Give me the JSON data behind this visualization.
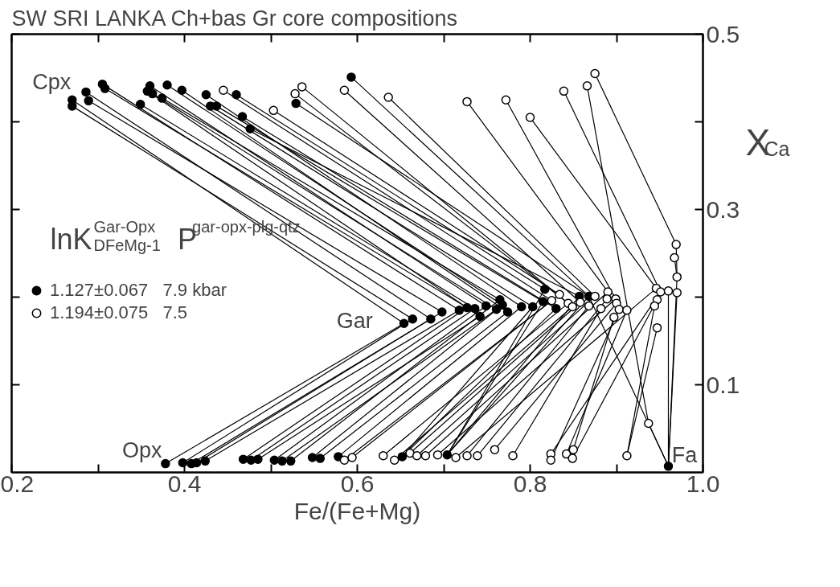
{
  "chart_data": {
    "type": "scatter",
    "title": "SW SRI LANKA   Ch+bas Gr       core compositions",
    "xlabel": "Fe/(Fe+Mg)",
    "ylabel": "X$_{Ca}$",
    "legend_title": "lnK$^{Gar-Opx}$$_{DFeMg-1}$   P$^{gar-opx-plg-qtz}$",
    "xlim": [
      0.2,
      1.0
    ],
    "ylim": [
      0,
      0.5
    ],
    "xticks": [
      0.2,
      {
        "value": 0.3,
        "label": null
      },
      0.4,
      {
        "value": 0.5,
        "label": null
      },
      0.6,
      {
        "value": 0.7,
        "label": null
      },
      0.8,
      {
        "value": 0.9,
        "label": null
      },
      {
        "value": 1.0,
        "label": "1.0"
      }
    ],
    "yticks": [
      0.1,
      {
        "value": 0.2,
        "label": null
      },
      0.3,
      {
        "value": 0.4,
        "label": null
      },
      0.5
    ],
    "grid": false,
    "legend": "left",
    "annotations": [
      "Cpx",
      "Gar",
      "Opx",
      "Fa"
    ],
    "series": [
      {
        "type": "line",
        "color": "#000000",
        "x": [
          0.27,
          0.654,
          0.378
        ],
        "values": [
          0.425,
          0.17,
          0.01
        ]
      },
      {
        "type": "line",
        "color": "#000000",
        "x": [
          0.27,
          0.664,
          0.398
        ],
        "values": [
          0.418,
          0.175,
          0.011
        ]
      },
      {
        "type": "line",
        "color": "#000000",
        "x": [
          0.286,
          0.685,
          0.408
        ],
        "values": [
          0.434,
          0.175,
          0.01
        ]
      },
      {
        "type": "line",
        "color": "#000000",
        "x": [
          0.289,
          0.698,
          0.414
        ],
        "values": [
          0.424,
          0.183,
          0.011
        ]
      },
      {
        "type": "line",
        "color": "#000000",
        "x": [
          0.305,
          0.718,
          0.424
        ],
        "values": [
          0.443,
          0.185,
          0.013
        ]
      },
      {
        "type": "line",
        "color": "#000000",
        "x": [
          0.308,
          0.727,
          0.468
        ],
        "values": [
          0.438,
          0.188,
          0.015
        ]
      },
      {
        "type": "line",
        "color": "#000000",
        "x": [
          0.349,
          0.736,
          0.477
        ],
        "values": [
          0.42,
          0.187,
          0.014
        ]
      },
      {
        "type": "line",
        "color": "#000000",
        "x": [
          0.357,
          0.742,
          0.485
        ],
        "values": [
          0.435,
          0.178,
          0.015
        ]
      },
      {
        "type": "line",
        "color": "#000000",
        "x": [
          0.36,
          0.749,
          0.504
        ],
        "values": [
          0.441,
          0.19,
          0.014
        ]
      },
      {
        "type": "line",
        "color": "#000000",
        "x": [
          0.363,
          0.761,
          0.513
        ],
        "values": [
          0.432,
          0.186,
          0.013
        ]
      },
      {
        "type": "line",
        "color": "#000000",
        "x": [
          0.374,
          0.765,
          0.523
        ],
        "values": [
          0.427,
          0.197,
          0.013
        ]
      },
      {
        "type": "line",
        "color": "#000000",
        "x": [
          0.38,
          0.768,
          0.548
        ],
        "values": [
          0.442,
          0.191,
          0.017
        ]
      },
      {
        "type": "line",
        "color": "#000000",
        "x": [
          0.397,
          0.774,
          0.557
        ],
        "values": [
          0.436,
          0.183,
          0.016
        ]
      },
      {
        "type": "line",
        "color": "#000000",
        "x": [
          0.425,
          0.79,
          0.578
        ],
        "values": [
          0.431,
          0.189,
          0.018
        ]
      },
      {
        "type": "line",
        "color": "#000000",
        "x": [
          0.43,
          0.803,
          0.652
        ],
        "values": [
          0.418,
          0.189,
          0.018
        ]
      },
      {
        "type": "line",
        "color": "#000000",
        "x": [
          0.437,
          0.815,
          0.704
        ],
        "values": [
          0.418,
          0.195,
          0.02
        ]
      },
      {
        "type": "line",
        "color": "#000000",
        "x": [
          0.46,
          0.817,
          0.704
        ],
        "values": [
          0.431,
          0.209,
          0.02
        ]
      },
      {
        "type": "line",
        "color": "#000000",
        "x": [
          0.467,
          0.83,
          0.652
        ],
        "values": [
          0.406,
          0.187,
          0.018
        ]
      },
      {
        "type": "line",
        "color": "#000000",
        "x": [
          0.476,
          0.857,
          0.704
        ],
        "values": [
          0.392,
          0.201,
          0.02
        ]
      },
      {
        "type": "line",
        "color": "#000000",
        "x": [
          0.529,
          0.868,
          0.704
        ],
        "values": [
          0.421,
          0.201,
          0.02
        ]
      },
      {
        "type": "line",
        "color": "#000000",
        "x": [
          0.593,
          0.868,
          0.96
        ],
        "values": [
          0.451,
          0.201,
          0.007
        ]
      },
      {
        "type": "line",
        "color": "#000000",
        "x": [
          0.445,
          0.825,
          0.585
        ],
        "values": [
          0.436,
          0.196,
          0.014
        ]
      },
      {
        "type": "line",
        "color": "#000000",
        "x": [
          0.503,
          0.834,
          0.594
        ],
        "values": [
          0.413,
          0.203,
          0.017
        ]
      },
      {
        "type": "line",
        "color": "#000000",
        "x": [
          0.528,
          0.844,
          0.63
        ],
        "values": [
          0.432,
          0.193,
          0.019
        ]
      },
      {
        "type": "line",
        "color": "#000000",
        "x": [
          0.536,
          0.849,
          0.643
        ],
        "values": [
          0.44,
          0.189,
          0.014
        ]
      },
      {
        "type": "line",
        "color": "#000000",
        "x": [
          0.585,
          0.858,
          0.661
        ],
        "values": [
          0.436,
          0.194,
          0.022
        ]
      },
      {
        "type": "line",
        "color": "#000000",
        "x": [
          0.636,
          0.875,
          0.669
        ],
        "values": [
          0.428,
          0.201,
          0.019
        ]
      },
      {
        "type": "line",
        "color": "#000000",
        "x": [
          0.727,
          0.89,
          0.679
        ],
        "values": [
          0.423,
          0.206,
          0.019
        ]
      },
      {
        "type": "line",
        "color": "#000000",
        "x": [
          0.772,
          0.899,
          0.693
        ],
        "values": [
          0.425,
          0.198,
          0.02
        ]
      },
      {
        "type": "line",
        "color": "#000000",
        "x": [
          0.8,
          0.946,
          0.714
        ],
        "values": [
          0.405,
          0.21,
          0.017
        ]
      },
      {
        "type": "line",
        "color": "#000000",
        "x": [
          0.839,
          0.951,
          0.824
        ],
        "values": [
          0.435,
          0.206,
          0.021
        ]
      },
      {
        "type": "line",
        "color": "#000000",
        "x": [
          0.866,
          0.937,
          0.96
        ],
        "values": [
          0.441,
          0.056,
          0.007
        ]
      },
      {
        "type": "line",
        "color": "#000000",
        "x": [
          0.875,
          0.969,
          0.97,
          0.96
        ],
        "values": [
          0.455,
          0.26,
          0.223,
          0.007
        ]
      },
      {
        "type": "line",
        "color": "#000000",
        "x": [
          0.868,
          0.727
        ],
        "values": [
          0.19,
          0.019
        ]
      },
      {
        "type": "line",
        "color": "#000000",
        "x": [
          0.889,
          0.739
        ],
        "values": [
          0.198,
          0.019
        ]
      },
      {
        "type": "line",
        "color": "#000000",
        "x": [
          0.9,
          0.759
        ],
        "values": [
          0.193,
          0.026
        ]
      },
      {
        "type": "line",
        "color": "#000000",
        "x": [
          0.882,
          0.78
        ],
        "values": [
          0.187,
          0.019
        ]
      },
      {
        "type": "line",
        "color": "#000000",
        "x": [
          0.903,
          0.824
        ],
        "values": [
          0.186,
          0.014
        ]
      },
      {
        "type": "line",
        "color": "#000000",
        "x": [
          0.912,
          0.842
        ],
        "values": [
          0.185,
          0.021
        ]
      },
      {
        "type": "line",
        "color": "#000000",
        "x": [
          0.897,
          0.85
        ],
        "values": [
          0.177,
          0.026
        ]
      },
      {
        "type": "line",
        "color": "#000000",
        "x": [
          0.947,
          0.849
        ],
        "values": [
          0.197,
          0.016
        ]
      },
      {
        "type": "line",
        "color": "#000000",
        "x": [
          0.944,
          0.912
        ],
        "values": [
          0.19,
          0.019
        ]
      },
      {
        "type": "line",
        "color": "#000000",
        "x": [
          0.96,
          0.96
        ],
        "values": [
          0.207,
          0.007
        ]
      },
      {
        "type": "line",
        "color": "#000000",
        "x": [
          0.97,
          0.96
        ],
        "values": [
          0.205,
          0.007
        ]
      },
      {
        "type": "line",
        "color": "#000000",
        "x": [
          0.967,
          0.97
        ],
        "values": [
          0.245,
          0.223
        ]
      },
      {
        "type": "line",
        "color": "#000000",
        "x": [
          0.947,
          0.912
        ],
        "values": [
          0.165,
          0.019
        ]
      },
      {
        "name": "1.127±0.067   7.9 kbar",
        "marker": "circle",
        "color": "#000000",
        "x": [
          0.27,
          0.27,
          0.286,
          0.289,
          0.305,
          0.308,
          0.349,
          0.357,
          0.36,
          0.363,
          0.374,
          0.38,
          0.397,
          0.425,
          0.43,
          0.437,
          0.46,
          0.467,
          0.476,
          0.529,
          0.593,
          0.654,
          0.664,
          0.685,
          0.698,
          0.718,
          0.727,
          0.736,
          0.742,
          0.749,
          0.761,
          0.765,
          0.768,
          0.774,
          0.79,
          0.803,
          0.815,
          0.817,
          0.83,
          0.857,
          0.868,
          0.96,
          0.378,
          0.398,
          0.408,
          0.414,
          0.424,
          0.468,
          0.477,
          0.485,
          0.504,
          0.513,
          0.523,
          0.548,
          0.557,
          0.578,
          0.652,
          0.704
        ],
        "values": [
          0.425,
          0.418,
          0.434,
          0.424,
          0.443,
          0.438,
          0.42,
          0.435,
          0.441,
          0.432,
          0.427,
          0.442,
          0.436,
          0.431,
          0.418,
          0.418,
          0.431,
          0.406,
          0.392,
          0.421,
          0.451,
          0.17,
          0.175,
          0.175,
          0.183,
          0.185,
          0.188,
          0.187,
          0.178,
          0.19,
          0.186,
          0.197,
          0.191,
          0.183,
          0.189,
          0.189,
          0.195,
          0.209,
          0.187,
          0.201,
          0.201,
          0.007,
          0.01,
          0.011,
          0.01,
          0.011,
          0.013,
          0.015,
          0.014,
          0.015,
          0.014,
          0.013,
          0.013,
          0.017,
          0.016,
          0.018,
          0.018,
          0.02
        ]
      },
      {
        "name": "1.194±0.075   7.5",
        "marker": "circle",
        "color": "#ffffff",
        "x": [
          0.445,
          0.503,
          0.528,
          0.536,
          0.585,
          0.636,
          0.727,
          0.772,
          0.8,
          0.839,
          0.866,
          0.875,
          0.834,
          0.825,
          0.844,
          0.849,
          0.858,
          0.868,
          0.875,
          0.89,
          0.889,
          0.899,
          0.9,
          0.882,
          0.903,
          0.912,
          0.897,
          0.946,
          0.951,
          0.96,
          0.947,
          0.944,
          0.947,
          0.97,
          0.97,
          0.967,
          0.969,
          0.937,
          0.585,
          0.594,
          0.63,
          0.643,
          0.661,
          0.669,
          0.679,
          0.693,
          0.714,
          0.727,
          0.739,
          0.759,
          0.78,
          0.824,
          0.824,
          0.842,
          0.85,
          0.849,
          0.912
        ],
        "values": [
          0.436,
          0.413,
          0.432,
          0.44,
          0.436,
          0.428,
          0.423,
          0.425,
          0.405,
          0.435,
          0.441,
          0.455,
          0.203,
          0.196,
          0.193,
          0.189,
          0.194,
          0.19,
          0.201,
          0.206,
          0.198,
          0.198,
          0.193,
          0.187,
          0.186,
          0.185,
          0.177,
          0.21,
          0.206,
          0.207,
          0.197,
          0.19,
          0.165,
          0.223,
          0.205,
          0.245,
          0.26,
          0.056,
          0.014,
          0.017,
          0.019,
          0.014,
          0.022,
          0.019,
          0.019,
          0.02,
          0.017,
          0.019,
          0.019,
          0.026,
          0.019,
          0.021,
          0.014,
          0.021,
          0.026,
          0.016,
          0.019
        ]
      }
    ]
  }
}
